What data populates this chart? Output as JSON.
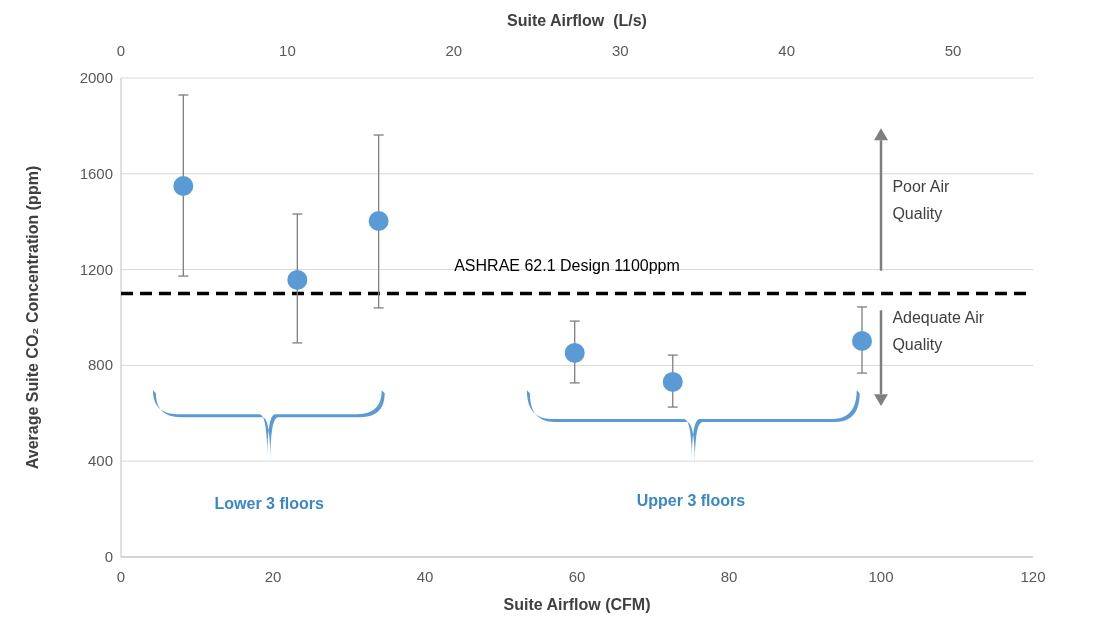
{
  "chart_data": {
    "type": "scatter",
    "x": [
      8.2,
      23.2,
      33.9,
      59.7,
      72.6,
      97.5
    ],
    "values": [
      1549,
      1157,
      1403,
      852,
      731,
      902
    ],
    "errors": [
      [
        1173,
        1929
      ],
      [
        894,
        1432
      ],
      [
        1040,
        1762
      ],
      [
        727,
        985
      ],
      [
        626,
        843
      ],
      [
        768,
        1044
      ]
    ],
    "color": "#5b9bd5",
    "marker": "circle",
    "xlabel": "Suite Airflow (CFM)",
    "x2label": "Suite Airflow  (L/s)",
    "ylabel": "Average Suite CO₂ Concentration (ppm)",
    "xlim": [
      0,
      120
    ],
    "xticks": [
      0,
      20,
      40,
      60,
      80,
      100,
      120
    ],
    "x2lim": [
      0,
      54.8
    ],
    "x2ticks": [
      0,
      10,
      20,
      30,
      40,
      50
    ],
    "ylim": [
      0,
      2000
    ],
    "yticks": [
      0,
      400,
      800,
      1200,
      1600,
      2000
    ],
    "grid": "y",
    "ref_lines": [
      {
        "axis": "y",
        "value": 1100,
        "label": "ASHRAE 62.1 Design 1100ppm",
        "color": "#000000",
        "line_style": "dashed"
      }
    ],
    "annotations": [
      "Poor Air Quality",
      "Adequate Air Quality",
      "Lower 3 floors",
      "Upper 3 floors"
    ]
  }
}
